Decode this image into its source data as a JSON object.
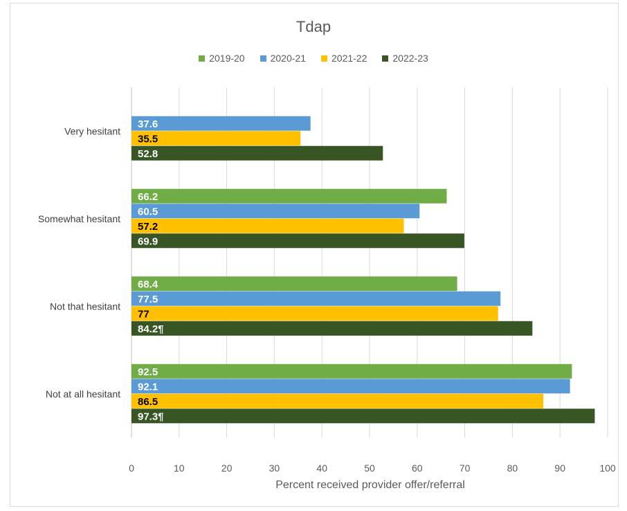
{
  "chart_data": {
    "type": "bar",
    "orientation": "horizontal",
    "title": "Tdap",
    "xlabel": "Percent received provider offer/referral",
    "ylabel": "",
    "xlim": [
      0,
      100
    ],
    "x_ticks": [
      "0",
      "10",
      "20",
      "30",
      "40",
      "50",
      "60",
      "70",
      "80",
      "90",
      "100"
    ],
    "grid": true,
    "legend_position": "top",
    "categories": [
      "Very hesitant",
      "Somewhat hesitant",
      "Not that hesitant",
      "Not at all hesitant"
    ],
    "series": [
      {
        "name": "2019-20",
        "color": "#70ad47",
        "label_color": "#ffffff",
        "values": [
          null,
          66.2,
          68.4,
          92.5
        ],
        "labels": [
          "",
          "66.2",
          "68.4",
          "92.5"
        ]
      },
      {
        "name": "2020-21",
        "color": "#5b9bd5",
        "label_color": "#ffffff",
        "values": [
          37.6,
          60.5,
          77.5,
          92.1
        ],
        "labels": [
          "37.6",
          "60.5",
          "77.5",
          "92.1"
        ]
      },
      {
        "name": "2021-22",
        "color": "#ffc000",
        "label_color": "#000000",
        "values": [
          35.5,
          57.2,
          77,
          86.5
        ],
        "labels": [
          "35.5",
          "57.2",
          "77",
          "86.5"
        ]
      },
      {
        "name": "2022-23",
        "color": "#375623",
        "label_color": "#ffffff",
        "values": [
          52.8,
          69.9,
          84.2,
          97.3
        ],
        "labels": [
          "52.8",
          "69.9",
          "84.2¶",
          "97.3¶"
        ]
      }
    ]
  }
}
